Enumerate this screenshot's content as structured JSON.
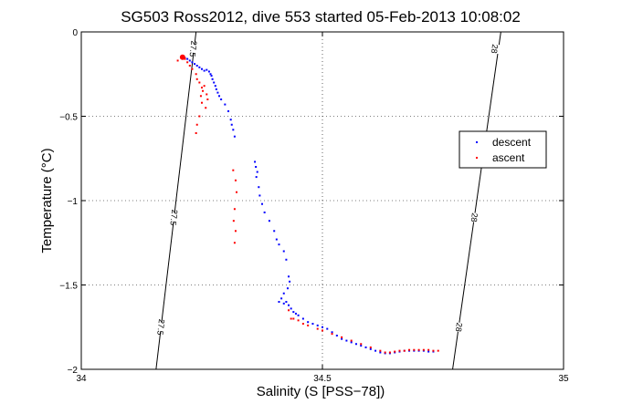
{
  "chart_data": {
    "type": "scatter",
    "title": "SG503 Ross2012, dive 553 started 05-Feb-2013 10:08:02",
    "xlabel": "Salinity (S [PSS−78])",
    "ylabel": "Temperature (°C)",
    "xlim": [
      34,
      35
    ],
    "ylim": [
      -2,
      0
    ],
    "xticks": [
      34,
      34.5,
      35
    ],
    "xtick_labels": [
      "34",
      "34.5",
      "35"
    ],
    "yticks": [
      0,
      -0.5,
      -1,
      -1.5,
      -2
    ],
    "ytick_labels": [
      "0",
      "−0.5",
      "−1",
      "−1.5",
      "−2"
    ],
    "grid": "dotted",
    "legend_position": "right",
    "colors": {
      "descent": "#0000ff",
      "ascent": "#ff0000",
      "isopycnal": "#000000"
    },
    "isopycnals": [
      {
        "label": "27.5",
        "points": [
          [
            34.155,
            -2
          ],
          [
            34.238,
            0
          ]
        ],
        "label_positions": [
          [
            34.192,
            -1.1
          ],
          [
            34.232,
            -0.1
          ],
          [
            34.165,
            -1.75
          ]
        ]
      },
      {
        "label": "28",
        "points": [
          [
            34.77,
            -2
          ],
          [
            34.87,
            0
          ]
        ],
        "label_positions": [
          [
            34.815,
            -1.1
          ],
          [
            34.857,
            -0.1
          ],
          [
            34.783,
            -1.75
          ]
        ]
      }
    ],
    "series": [
      {
        "name": "descent",
        "color": "#0000ff",
        "points": [
          [
            34.21,
            -0.15
          ],
          [
            34.215,
            -0.155
          ],
          [
            34.22,
            -0.16
          ],
          [
            34.225,
            -0.17
          ],
          [
            34.23,
            -0.18
          ],
          [
            34.235,
            -0.19
          ],
          [
            34.24,
            -0.2
          ],
          [
            34.245,
            -0.21
          ],
          [
            34.25,
            -0.22
          ],
          [
            34.255,
            -0.23
          ],
          [
            34.26,
            -0.225
          ],
          [
            34.265,
            -0.235
          ],
          [
            34.268,
            -0.25
          ],
          [
            34.27,
            -0.26
          ],
          [
            34.272,
            -0.28
          ],
          [
            34.275,
            -0.3
          ],
          [
            34.278,
            -0.32
          ],
          [
            34.28,
            -0.34
          ],
          [
            34.283,
            -0.36
          ],
          [
            34.286,
            -0.38
          ],
          [
            34.29,
            -0.4
          ],
          [
            34.298,
            -0.43
          ],
          [
            34.305,
            -0.47
          ],
          [
            34.31,
            -0.52
          ],
          [
            34.312,
            -0.55
          ],
          [
            34.315,
            -0.58
          ],
          [
            34.318,
            -0.62
          ],
          [
            34.36,
            -0.77
          ],
          [
            34.362,
            -0.8
          ],
          [
            34.365,
            -0.83
          ],
          [
            34.363,
            -0.86
          ],
          [
            34.368,
            -0.92
          ],
          [
            34.37,
            -0.97
          ],
          [
            34.375,
            -1.02
          ],
          [
            34.38,
            -1.07
          ],
          [
            34.39,
            -1.12
          ],
          [
            34.4,
            -1.18
          ],
          [
            34.405,
            -1.23
          ],
          [
            34.41,
            -1.26
          ],
          [
            34.42,
            -1.3
          ],
          [
            34.425,
            -1.35
          ],
          [
            34.43,
            -1.45
          ],
          [
            34.432,
            -1.48
          ],
          [
            34.428,
            -1.52
          ],
          [
            34.42,
            -1.55
          ],
          [
            34.415,
            -1.58
          ],
          [
            34.41,
            -1.6
          ],
          [
            34.42,
            -1.61
          ],
          [
            34.425,
            -1.6
          ],
          [
            34.43,
            -1.62
          ],
          [
            34.435,
            -1.64
          ],
          [
            34.44,
            -1.66
          ],
          [
            34.445,
            -1.67
          ],
          [
            34.45,
            -1.68
          ],
          [
            34.46,
            -1.7
          ],
          [
            34.47,
            -1.72
          ],
          [
            34.48,
            -1.73
          ],
          [
            34.49,
            -1.74
          ],
          [
            34.5,
            -1.75
          ],
          [
            34.51,
            -1.76
          ],
          [
            34.52,
            -1.78
          ],
          [
            34.53,
            -1.8
          ],
          [
            34.54,
            -1.82
          ],
          [
            34.55,
            -1.83
          ],
          [
            34.56,
            -1.84
          ],
          [
            34.57,
            -1.85
          ],
          [
            34.58,
            -1.86
          ],
          [
            34.59,
            -1.87
          ],
          [
            34.6,
            -1.88
          ],
          [
            34.61,
            -1.89
          ],
          [
            34.62,
            -1.9
          ],
          [
            34.63,
            -1.905
          ],
          [
            34.64,
            -1.905
          ],
          [
            34.65,
            -1.9
          ],
          [
            34.66,
            -1.895
          ],
          [
            34.67,
            -1.89
          ],
          [
            34.68,
            -1.89
          ],
          [
            34.69,
            -1.89
          ],
          [
            34.7,
            -1.89
          ],
          [
            34.71,
            -1.89
          ],
          [
            34.72,
            -1.895
          ],
          [
            34.73,
            -1.895
          ]
        ]
      },
      {
        "name": "ascent",
        "color": "#ff0000",
        "points": [
          [
            34.2,
            -0.17
          ],
          [
            34.21,
            -0.15
          ],
          [
            34.215,
            -0.16
          ],
          [
            34.22,
            -0.18
          ],
          [
            34.225,
            -0.2
          ],
          [
            34.23,
            -0.22
          ],
          [
            34.238,
            -0.25
          ],
          [
            34.24,
            -0.28
          ],
          [
            34.245,
            -0.3
          ],
          [
            34.25,
            -0.33
          ],
          [
            34.252,
            -0.35
          ],
          [
            34.255,
            -0.32
          ],
          [
            34.26,
            -0.37
          ],
          [
            34.262,
            -0.4
          ],
          [
            34.258,
            -0.45
          ],
          [
            34.245,
            -0.5
          ],
          [
            34.24,
            -0.55
          ],
          [
            34.238,
            -0.6
          ],
          [
            34.248,
            -0.38
          ],
          [
            34.25,
            -0.42
          ],
          [
            34.315,
            -0.82
          ],
          [
            34.32,
            -0.88
          ],
          [
            34.322,
            -0.95
          ],
          [
            34.318,
            -1.05
          ],
          [
            34.316,
            -1.12
          ],
          [
            34.32,
            -1.18
          ],
          [
            34.318,
            -1.25
          ],
          [
            34.43,
            -1.65
          ],
          [
            34.435,
            -1.7
          ],
          [
            34.44,
            -1.7
          ],
          [
            34.45,
            -1.71
          ],
          [
            34.46,
            -1.73
          ],
          [
            34.47,
            -1.74
          ],
          [
            34.49,
            -1.76
          ],
          [
            34.5,
            -1.77
          ],
          [
            34.52,
            -1.79
          ],
          [
            34.54,
            -1.81
          ],
          [
            34.56,
            -1.83
          ],
          [
            34.58,
            -1.85
          ],
          [
            34.6,
            -1.87
          ],
          [
            34.62,
            -1.89
          ],
          [
            34.63,
            -1.9
          ],
          [
            34.64,
            -1.9
          ],
          [
            34.65,
            -1.895
          ],
          [
            34.66,
            -1.89
          ],
          [
            34.67,
            -1.89
          ],
          [
            34.68,
            -1.885
          ],
          [
            34.69,
            -1.885
          ],
          [
            34.7,
            -1.885
          ],
          [
            34.71,
            -1.885
          ],
          [
            34.72,
            -1.885
          ],
          [
            34.73,
            -1.89
          ],
          [
            34.74,
            -1.89
          ]
        ]
      }
    ]
  }
}
